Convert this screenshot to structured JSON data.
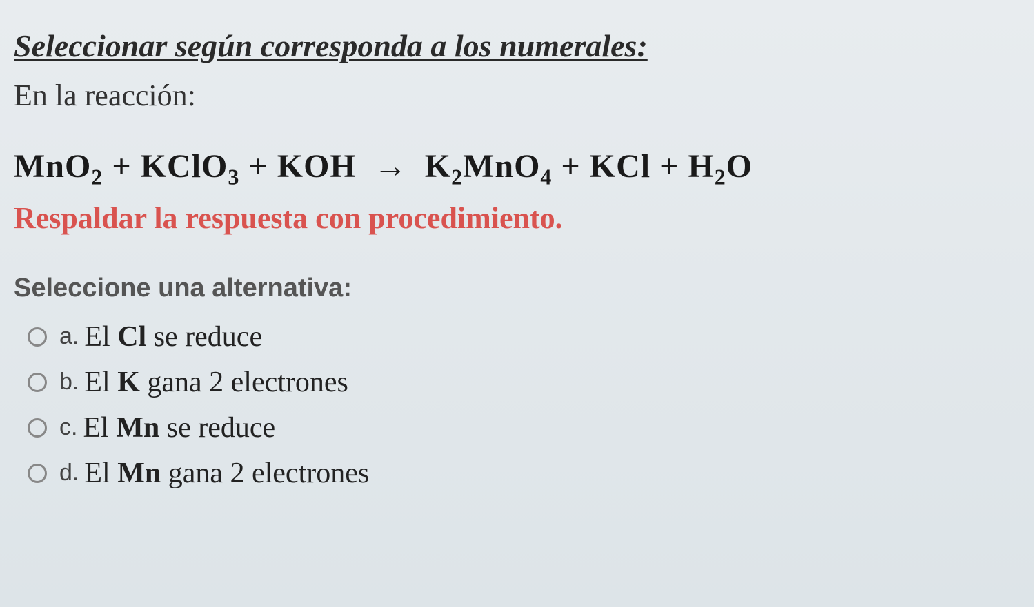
{
  "heading": "Seleccionar según corresponda a los numerales:",
  "subheading": "En la reacción:",
  "equation": {
    "lhs": [
      {
        "base": "MnO",
        "sub": "2"
      },
      {
        "plus": "+"
      },
      {
        "base": "KClO",
        "sub": "3"
      },
      {
        "plus": "+"
      },
      {
        "base": "KOH"
      }
    ],
    "arrow": "→",
    "rhs": [
      {
        "base": "K",
        "sub": "2",
        "base2": "MnO",
        "sub2": "4"
      },
      {
        "plus": "+"
      },
      {
        "base": "KCl"
      },
      {
        "plus": "+"
      },
      {
        "base": "H",
        "sub": "2",
        "base2": "O"
      }
    ]
  },
  "instruction": "Respaldar la respuesta con procedimiento.",
  "prompt": "Seleccione una alternativa:",
  "options": [
    {
      "letter": "a.",
      "pre": "El ",
      "bold": "Cl",
      "post": " se reduce"
    },
    {
      "letter": "b.",
      "pre": "El ",
      "bold": "K",
      "post": " gana 2 electrones"
    },
    {
      "letter": "c.",
      "pre": "El ",
      "bold": "Mn",
      "post": " se reduce"
    },
    {
      "letter": "d.",
      "pre": "El ",
      "bold": "Mn",
      "post": " gana 2 electrones"
    }
  ],
  "colors": {
    "heading": "#2a2a2a",
    "instruction": "#d9534f",
    "text": "#1a1a1a",
    "background_top": "#e8ecef",
    "background_bottom": "#dde4e8",
    "radio_border": "#888888"
  },
  "fontsizes": {
    "heading": 46,
    "subheading": 44,
    "equation": 48,
    "instruction": 44,
    "prompt": 38,
    "option_letter": 34,
    "option_text": 42
  }
}
